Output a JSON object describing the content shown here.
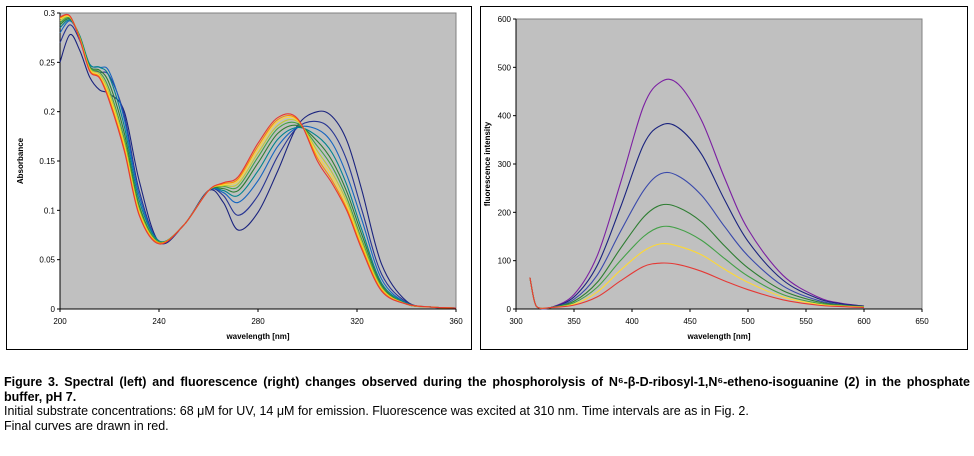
{
  "figure": {
    "caption_title": "Figure 3. Spectral (left) and fluorescence (right) changes observed during the phosphorolysis of N⁶-β-D-ribosyl-1,N⁶-etheno-isoguanine (2) in the phosphate buffer, pH 7.",
    "caption_line_1": "Initial substrate concentrations: 68 μM for UV, 14 μM for emission.  Fluorescence was excited at 310 nm. Time intervals are as in Fig. 2.",
    "caption_line_2": "Final curves are drawn in red."
  },
  "chart_data": [
    {
      "type": "line",
      "xlabel": "wavelength [nm]",
      "ylabel": "Absorbance",
      "xlim": [
        200,
        360
      ],
      "ylim": [
        0,
        0.3
      ],
      "x_ticks": [
        "200",
        "240",
        "280",
        "320",
        "360"
      ],
      "y_ticks": [
        "0",
        "0.05",
        "0.1",
        "0.15",
        "0.2",
        "0.25",
        "0.3"
      ],
      "plot_background": "#c0c0c0",
      "series": [
        {
          "color": "#1a237e",
          "x": [
            200,
            204,
            208,
            212,
            216,
            220,
            226,
            232,
            240,
            250,
            260,
            266,
            272,
            280,
            288,
            296,
            304,
            310,
            316,
            322,
            330,
            340,
            350,
            360
          ],
          "y": [
            0.25,
            0.278,
            0.262,
            0.235,
            0.222,
            0.218,
            0.2,
            0.13,
            0.068,
            0.085,
            0.12,
            0.108,
            0.08,
            0.098,
            0.14,
            0.186,
            0.2,
            0.195,
            0.17,
            0.12,
            0.045,
            0.008,
            0.002,
            0.001
          ]
        },
        {
          "color": "#283593",
          "x": [
            200,
            204,
            208,
            212,
            216,
            220,
            226,
            232,
            240,
            250,
            260,
            266,
            272,
            280,
            288,
            296,
            304,
            310,
            316,
            322,
            330,
            340,
            350,
            360
          ],
          "y": [
            0.27,
            0.288,
            0.272,
            0.245,
            0.24,
            0.236,
            0.196,
            0.12,
            0.068,
            0.085,
            0.12,
            0.115,
            0.095,
            0.115,
            0.155,
            0.184,
            0.19,
            0.18,
            0.15,
            0.1,
            0.035,
            0.007,
            0.002,
            0.001
          ]
        },
        {
          "color": "#1565c0",
          "x": [
            200,
            204,
            208,
            212,
            216,
            220,
            226,
            232,
            240,
            250,
            260,
            266,
            272,
            280,
            288,
            296,
            304,
            310,
            316,
            322,
            330,
            340,
            350,
            360
          ],
          "y": [
            0.28,
            0.292,
            0.276,
            0.248,
            0.245,
            0.24,
            0.192,
            0.115,
            0.069,
            0.085,
            0.12,
            0.118,
            0.108,
            0.13,
            0.165,
            0.184,
            0.182,
            0.168,
            0.135,
            0.09,
            0.03,
            0.006,
            0.002,
            0.001
          ]
        },
        {
          "color": "#00838f",
          "x": [
            200,
            204,
            208,
            212,
            216,
            220,
            226,
            232,
            240,
            250,
            260,
            266,
            272,
            280,
            288,
            296,
            304,
            310,
            316,
            322,
            330,
            340,
            350,
            360
          ],
          "y": [
            0.285,
            0.293,
            0.277,
            0.248,
            0.245,
            0.235,
            0.185,
            0.11,
            0.069,
            0.085,
            0.12,
            0.12,
            0.115,
            0.14,
            0.172,
            0.184,
            0.175,
            0.158,
            0.125,
            0.08,
            0.026,
            0.006,
            0.002,
            0.001
          ]
        },
        {
          "color": "#2e7d32",
          "x": [
            200,
            204,
            208,
            212,
            216,
            220,
            226,
            232,
            240,
            250,
            260,
            266,
            272,
            280,
            288,
            296,
            304,
            310,
            316,
            322,
            330,
            340,
            350,
            360
          ],
          "y": [
            0.288,
            0.294,
            0.276,
            0.246,
            0.242,
            0.228,
            0.178,
            0.105,
            0.068,
            0.085,
            0.12,
            0.122,
            0.12,
            0.148,
            0.178,
            0.186,
            0.17,
            0.15,
            0.118,
            0.075,
            0.024,
            0.005,
            0.002,
            0.001
          ]
        },
        {
          "color": "#43a047",
          "x": [
            200,
            204,
            208,
            212,
            216,
            220,
            226,
            232,
            240,
            250,
            260,
            266,
            272,
            280,
            288,
            296,
            304,
            310,
            316,
            322,
            330,
            340,
            350,
            360
          ],
          "y": [
            0.29,
            0.295,
            0.275,
            0.245,
            0.24,
            0.222,
            0.172,
            0.102,
            0.068,
            0.085,
            0.12,
            0.124,
            0.124,
            0.154,
            0.183,
            0.188,
            0.165,
            0.144,
            0.112,
            0.07,
            0.022,
            0.005,
            0.002,
            0.001
          ]
        },
        {
          "color": "#c0ca33",
          "x": [
            200,
            204,
            208,
            212,
            216,
            220,
            226,
            232,
            240,
            250,
            260,
            266,
            272,
            280,
            288,
            296,
            304,
            310,
            316,
            322,
            330,
            340,
            350,
            360
          ],
          "y": [
            0.292,
            0.296,
            0.275,
            0.244,
            0.238,
            0.218,
            0.168,
            0.1,
            0.067,
            0.085,
            0.12,
            0.125,
            0.127,
            0.158,
            0.186,
            0.19,
            0.16,
            0.138,
            0.108,
            0.067,
            0.021,
            0.005,
            0.002,
            0.001
          ]
        },
        {
          "color": "#fdd835",
          "x": [
            200,
            204,
            208,
            212,
            216,
            220,
            226,
            232,
            240,
            250,
            260,
            266,
            272,
            280,
            288,
            296,
            304,
            310,
            316,
            322,
            330,
            340,
            350,
            360
          ],
          "y": [
            0.294,
            0.296,
            0.274,
            0.243,
            0.236,
            0.215,
            0.165,
            0.098,
            0.067,
            0.085,
            0.12,
            0.126,
            0.13,
            0.162,
            0.19,
            0.191,
            0.156,
            0.134,
            0.104,
            0.064,
            0.02,
            0.005,
            0.002,
            0.001
          ]
        },
        {
          "color": "#fb8c00",
          "x": [
            200,
            204,
            208,
            212,
            216,
            220,
            226,
            232,
            240,
            250,
            260,
            266,
            272,
            280,
            288,
            296,
            304,
            310,
            316,
            322,
            330,
            340,
            350,
            360
          ],
          "y": [
            0.295,
            0.297,
            0.274,
            0.242,
            0.235,
            0.212,
            0.162,
            0.096,
            0.067,
            0.085,
            0.12,
            0.127,
            0.132,
            0.165,
            0.192,
            0.192,
            0.153,
            0.13,
            0.101,
            0.062,
            0.019,
            0.005,
            0.002,
            0.001
          ]
        },
        {
          "color": "#e53935",
          "x": [
            200,
            204,
            208,
            212,
            216,
            220,
            226,
            232,
            240,
            250,
            260,
            266,
            272,
            280,
            288,
            296,
            304,
            310,
            316,
            322,
            330,
            340,
            350,
            360
          ],
          "y": [
            0.296,
            0.297,
            0.273,
            0.241,
            0.234,
            0.21,
            0.16,
            0.095,
            0.066,
            0.085,
            0.12,
            0.128,
            0.134,
            0.168,
            0.194,
            0.193,
            0.15,
            0.127,
            0.099,
            0.06,
            0.018,
            0.005,
            0.002,
            0.001
          ]
        }
      ]
    },
    {
      "type": "line",
      "xlabel": "wavelength [nm]",
      "ylabel": "fluorescence intensity",
      "xlim": [
        300,
        650
      ],
      "ylim": [
        0,
        600
      ],
      "x_ticks": [
        "300",
        "350",
        "400",
        "450",
        "500",
        "550",
        "600",
        "650"
      ],
      "y_ticks": [
        "0",
        "100",
        "200",
        "300",
        "400",
        "500",
        "600"
      ],
      "plot_background": "#c0c0c0",
      "series": [
        {
          "color": "#7b1fa2",
          "x": [
            312,
            316,
            320,
            330,
            350,
            370,
            390,
            410,
            425,
            440,
            460,
            480,
            500,
            530,
            560,
            580,
            600
          ],
          "y": [
            65,
            15,
            2,
            3,
            30,
            110,
            260,
            420,
            470,
            465,
            390,
            270,
            165,
            70,
            25,
            12,
            6
          ]
        },
        {
          "color": "#1a237e",
          "x": [
            312,
            316,
            320,
            330,
            350,
            370,
            390,
            410,
            425,
            440,
            460,
            480,
            500,
            530,
            560,
            580,
            600
          ],
          "y": [
            65,
            15,
            2,
            3,
            25,
            90,
            210,
            340,
            380,
            375,
            320,
            225,
            140,
            60,
            22,
            11,
            6
          ]
        },
        {
          "color": "#3949ab",
          "x": [
            312,
            316,
            320,
            330,
            350,
            370,
            390,
            410,
            425,
            440,
            460,
            480,
            500,
            530,
            560,
            580,
            600
          ],
          "y": [
            65,
            15,
            2,
            3,
            20,
            70,
            160,
            245,
            280,
            275,
            235,
            170,
            110,
            48,
            18,
            9,
            5
          ]
        },
        {
          "color": "#2e7d32",
          "x": [
            312,
            316,
            320,
            330,
            350,
            370,
            390,
            410,
            425,
            440,
            460,
            480,
            500,
            530,
            560,
            580,
            600
          ],
          "y": [
            65,
            15,
            2,
            3,
            16,
            55,
            125,
            190,
            215,
            210,
            180,
            130,
            85,
            38,
            15,
            8,
            5
          ]
        },
        {
          "color": "#43a047",
          "x": [
            312,
            316,
            320,
            330,
            350,
            370,
            390,
            410,
            425,
            440,
            460,
            480,
            500,
            530,
            560,
            580,
            600
          ],
          "y": [
            65,
            15,
            2,
            3,
            13,
            45,
            100,
            150,
            170,
            166,
            142,
            104,
            68,
            30,
            12,
            7,
            4
          ]
        },
        {
          "color": "#fdd835",
          "x": [
            312,
            316,
            320,
            330,
            350,
            370,
            390,
            410,
            425,
            440,
            460,
            480,
            500,
            530,
            560,
            580,
            600
          ],
          "y": [
            65,
            15,
            2,
            3,
            10,
            35,
            80,
            120,
            135,
            130,
            112,
            82,
            55,
            25,
            10,
            6,
            4
          ]
        },
        {
          "color": "#e53935",
          "x": [
            312,
            316,
            320,
            330,
            350,
            370,
            390,
            410,
            425,
            440,
            460,
            480,
            500,
            530,
            560,
            580,
            600
          ],
          "y": [
            65,
            15,
            2,
            3,
            8,
            25,
            58,
            88,
            95,
            92,
            78,
            58,
            40,
            19,
            8,
            5,
            3
          ]
        }
      ]
    }
  ]
}
